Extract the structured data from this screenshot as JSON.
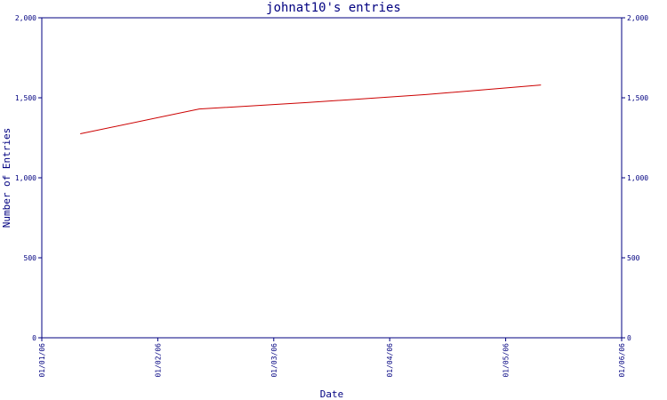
{
  "chart_data": {
    "type": "line",
    "title": "johnat10's entries",
    "xlabel": "Date",
    "ylabel": "Number of Entries",
    "x_tick_labels": [
      "01/01/06",
      "01/02/06",
      "01/03/06",
      "01/04/06",
      "01/05/06",
      "01/06/06"
    ],
    "y_ticks": [
      0,
      500,
      1000,
      1500,
      2000
    ],
    "y_tick_labels": [
      "0",
      "500",
      "1,000",
      "1,500",
      "2,000"
    ],
    "ylim": [
      0,
      2000
    ],
    "xlim": [
      "2006-01-01",
      "2006-06-01"
    ],
    "right_axis_labels": true,
    "grid": false,
    "series": [
      {
        "color": "#cc0000",
        "points": [
          {
            "x": "2006-01-11",
            "y": 1275
          },
          {
            "x": "2006-02-11",
            "y": 1430
          },
          {
            "x": "2006-03-11",
            "y": 1470
          },
          {
            "x": "2006-04-11",
            "y": 1520
          },
          {
            "x": "2006-05-11",
            "y": 1580
          }
        ]
      }
    ]
  }
}
